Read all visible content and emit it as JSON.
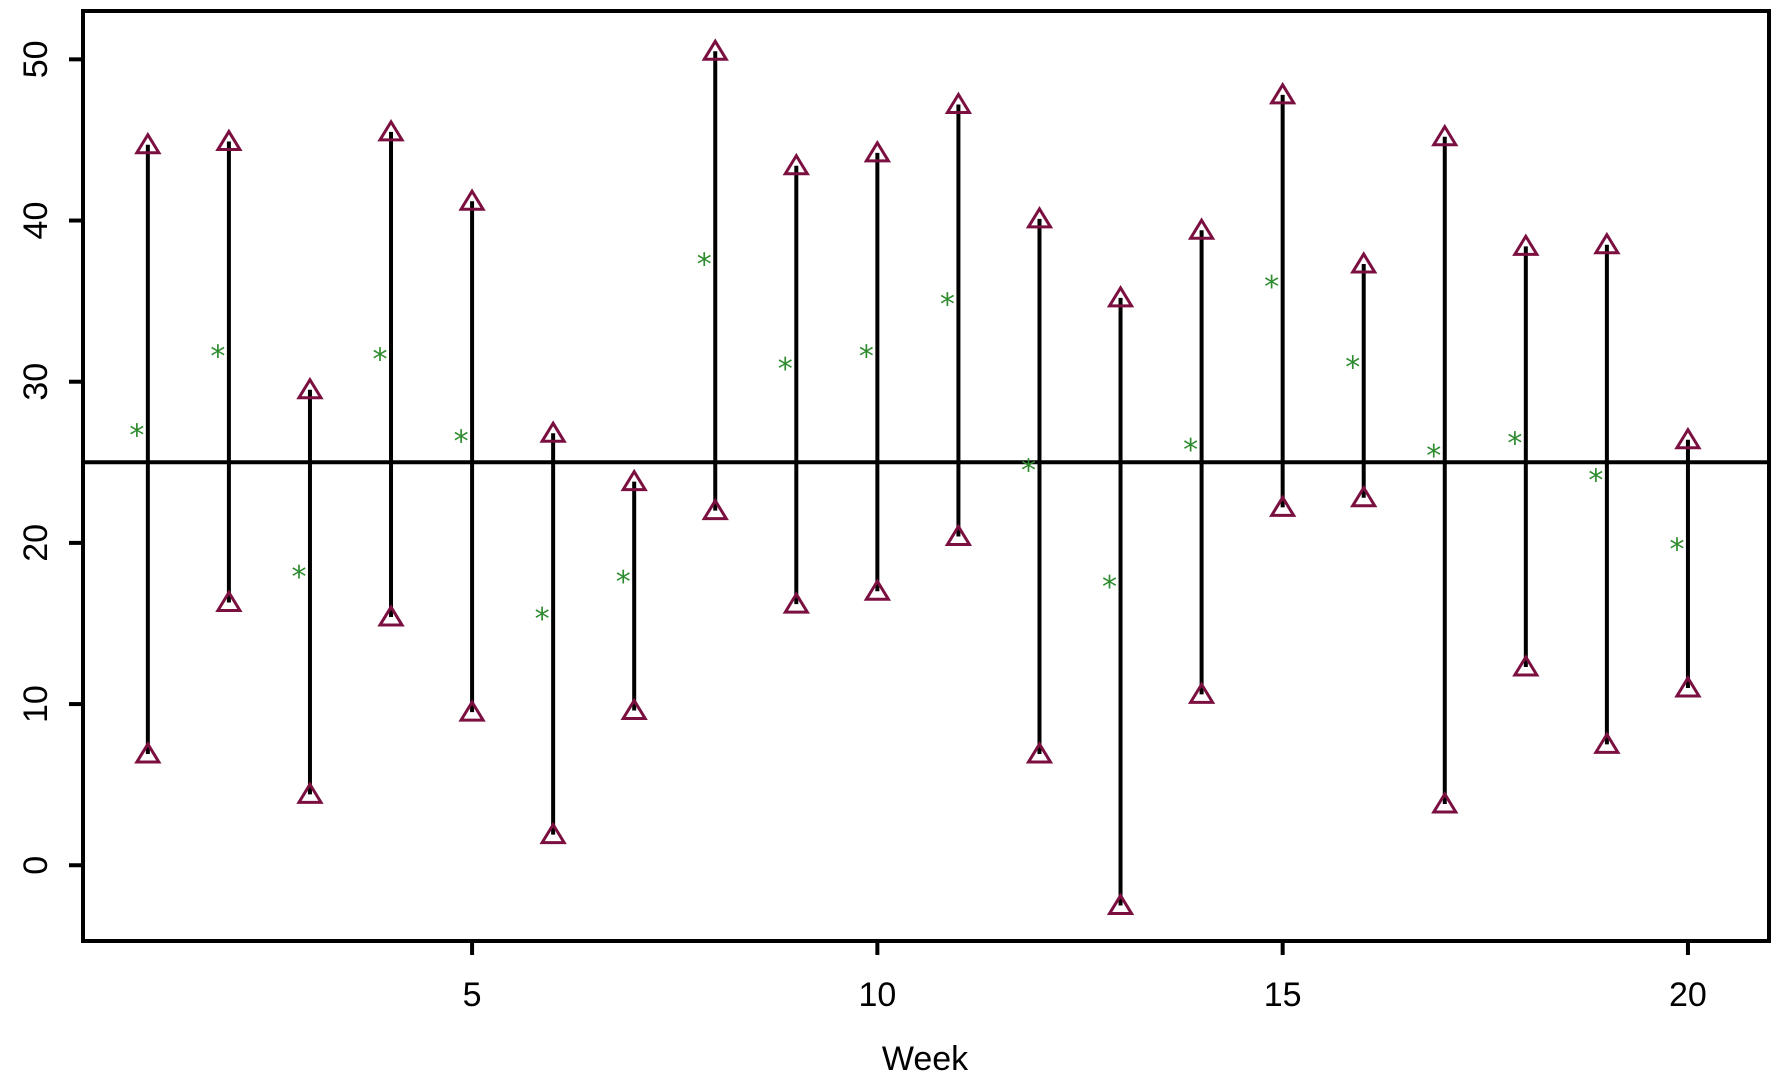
{
  "colors": {
    "interval": "#000000",
    "marker": "#7b1040",
    "point": "#2e8b2e",
    "reference": "#000000",
    "frame": "#000000"
  },
  "chart_data": {
    "type": "scatter",
    "title": "",
    "xlabel": "Week",
    "ylabel": "",
    "xlim": [
      0.2,
      21.0
    ],
    "ylim": [
      -4.7,
      53.0
    ],
    "x_ticks": [
      5,
      10,
      15,
      20
    ],
    "x_tick_labels": [
      "5",
      "10",
      "15",
      "20"
    ],
    "y_ticks": [
      0,
      10,
      20,
      30,
      40,
      50
    ],
    "y_tick_labels": [
      "0",
      "10",
      "20",
      "30",
      "40",
      "50"
    ],
    "reference_line": 25,
    "grid": false,
    "legend": "none",
    "point_marker": "*",
    "interval_marker": "triangle",
    "week": [
      1,
      2,
      3,
      4,
      5,
      6,
      7,
      8,
      9,
      10,
      11,
      12,
      13,
      14,
      15,
      16,
      17,
      18,
      19,
      20
    ],
    "point": [
      26.8,
      31.7,
      18.0,
      31.5,
      26.4,
      15.4,
      17.7,
      37.4,
      30.9,
      31.7,
      34.9,
      24.6,
      17.4,
      25.9,
      36.0,
      31.0,
      25.5,
      26.3,
      24.0,
      19.7
    ],
    "lower": [
      6.9,
      16.3,
      4.4,
      15.4,
      9.5,
      1.9,
      9.6,
      22.0,
      16.2,
      17.0,
      20.4,
      6.9,
      -2.5,
      10.6,
      22.2,
      22.8,
      3.8,
      12.3,
      7.5,
      11.0
    ],
    "upper": [
      44.7,
      44.9,
      29.5,
      45.5,
      41.2,
      26.8,
      23.8,
      50.5,
      43.4,
      44.2,
      47.2,
      40.1,
      35.2,
      39.4,
      47.8,
      37.3,
      45.2,
      38.4,
      38.5,
      26.4
    ]
  }
}
